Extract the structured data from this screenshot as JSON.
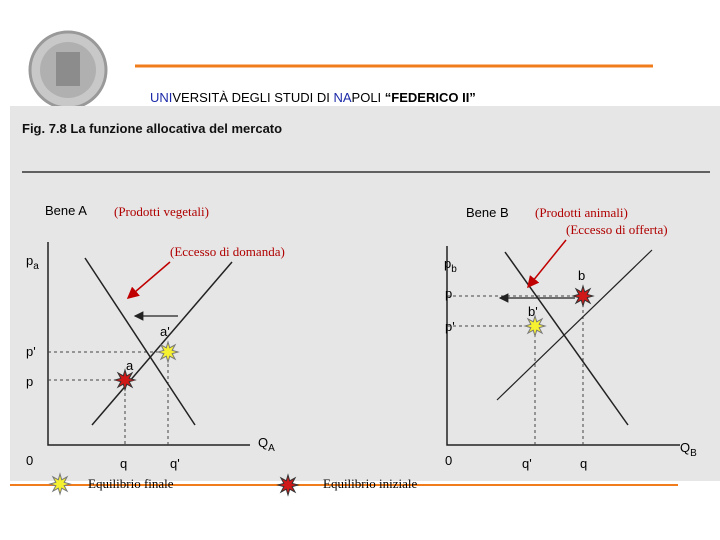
{
  "header": {
    "title_parts": [
      "UNI",
      "VERSITÀ DEGLI  STUDI  DI  ",
      "NA",
      "POLI ",
      "“FEDERICO II”"
    ]
  },
  "figure": {
    "title": "Fig. 7.8 La funzione allocativa del mercato",
    "panels": [
      {
        "name": "Bene A",
        "note": "(Prodotti vegetali)",
        "excess": "(Eccesso di domanda)",
        "y_axis": {
          "text": "p",
          "sub": "a"
        },
        "x_axis": {
          "text": "Q",
          "sub": "A"
        },
        "y_ticks": [
          "p'",
          "p",
          "0"
        ],
        "x_ticks": [
          "q",
          "q'"
        ],
        "points": [
          "a'",
          "a"
        ]
      },
      {
        "name": "Bene B",
        "note": "(Prodotti animali)",
        "excess": "(Eccesso di offerta)",
        "y_axis": {
          "text": "p",
          "sub": "b"
        },
        "x_axis": {
          "text": "Q",
          "sub": "B"
        },
        "y_ticks": [
          "p",
          "p'",
          "0"
        ],
        "x_ticks": [
          "q'",
          "q"
        ],
        "points": [
          "b",
          "b'"
        ]
      }
    ]
  },
  "legend": [
    "Equilibrio finale",
    "Equilibrio iniziale"
  ]
}
